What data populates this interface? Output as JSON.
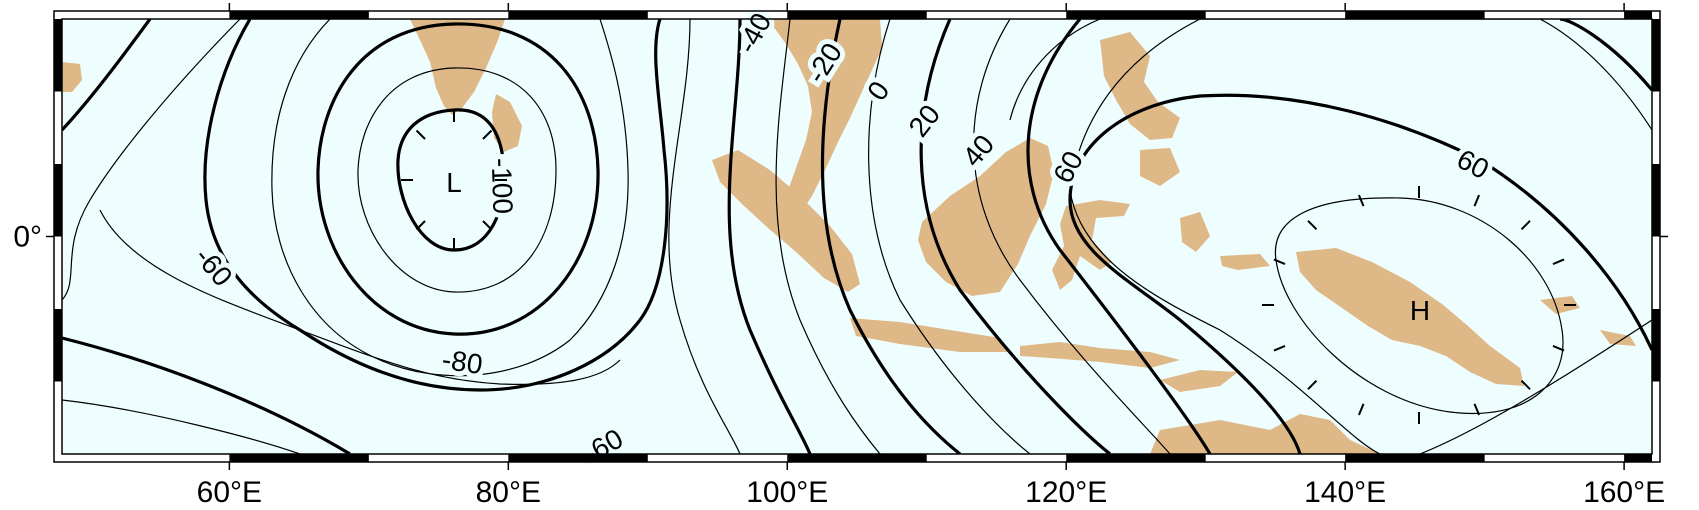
{
  "map": {
    "colors": {
      "ocean": "#eefefe",
      "land": "#deb887",
      "contour": "#000000",
      "frame": "#000000"
    },
    "extent": {
      "lon": [
        48,
        162
      ],
      "lat": [
        -15,
        15
      ]
    },
    "x_ticks": [
      {
        "lon": 60,
        "label": "60°E"
      },
      {
        "lon": 80,
        "label": "80°E"
      },
      {
        "lon": 100,
        "label": "100°E"
      },
      {
        "lon": 120,
        "label": "120°E"
      },
      {
        "lon": 140,
        "label": "140°E"
      },
      {
        "lon": 160,
        "label": "160°E"
      }
    ],
    "y_ticks": [
      {
        "lat": 0,
        "label": "0°"
      }
    ],
    "contour_labels": [
      "-100",
      "-80",
      "-60",
      "-60",
      "-40",
      "-20",
      "0",
      "20",
      "40",
      "60",
      "60",
      "60"
    ],
    "extrema": {
      "low": "L",
      "high": "H"
    }
  }
}
